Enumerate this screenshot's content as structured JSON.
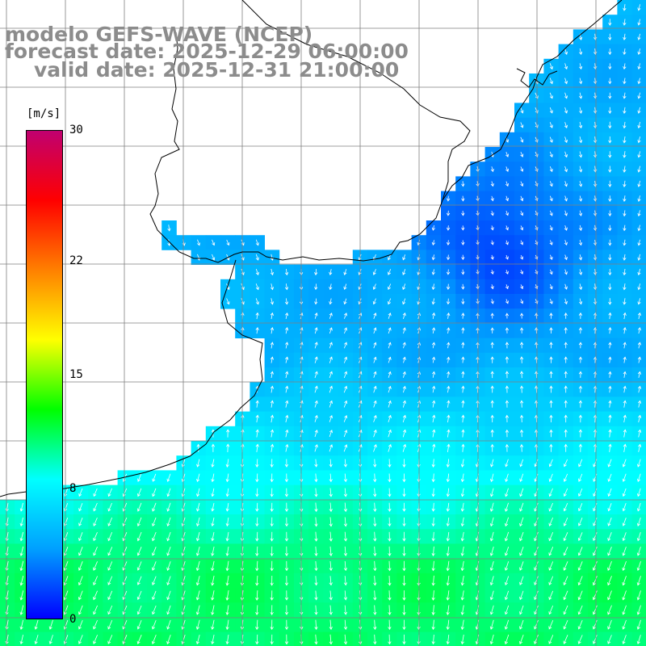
{
  "title": {
    "line1": "modelo GEFS-WAVE (NCEP)",
    "line2": "forecast date: 2025-12-29 06:00:00",
    "line3": "valid date: 2025-12-31 21:00:00"
  },
  "colorbar": {
    "unit": "[m/s]",
    "min": 0,
    "max": 30,
    "ticks": [
      {
        "value": 30,
        "label": "30"
      },
      {
        "value": 22,
        "label": "22"
      },
      {
        "value": 15,
        "label": "15"
      },
      {
        "value": 8,
        "label": "8"
      },
      {
        "value": 0,
        "label": "0"
      }
    ],
    "stops": [
      "#0000ff",
      "#00a0ff",
      "#00ffff",
      "#00ff00",
      "#ffff00",
      "#ff8000",
      "#ff0000",
      "#c00070"
    ]
  },
  "field": {
    "variable": "wind speed",
    "calm_value_ms": 5,
    "strong_value_ms": 11
  },
  "colors": {
    "background": "#ffffff",
    "coastline": "#000000",
    "grid": "#7f7f7f",
    "arrows": "#ffffff",
    "title": "#8c8c8c"
  }
}
